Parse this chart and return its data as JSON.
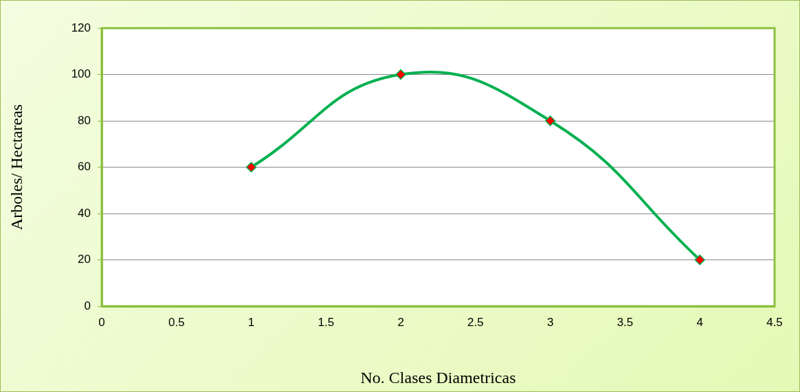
{
  "chart_data": {
    "type": "line",
    "xlabel": "No. Clases Diametricas",
    "ylabel": "Arboles/ Hectareas",
    "x": [
      1,
      2,
      3,
      4
    ],
    "series": [
      {
        "color": "#00b050",
        "values": [
          60,
          100,
          80,
          20
        ]
      }
    ],
    "xlim": [
      0,
      4.5
    ],
    "xticks": [
      0,
      0.5,
      1,
      1.5,
      2,
      2.5,
      3,
      3.5,
      4,
      4.5
    ],
    "ylim": [
      0,
      120
    ],
    "yticks": [
      0,
      20,
      40,
      60,
      80,
      100,
      120
    ],
    "grid": "y",
    "legend": false,
    "marker": "diamond",
    "line_style": "solid"
  }
}
